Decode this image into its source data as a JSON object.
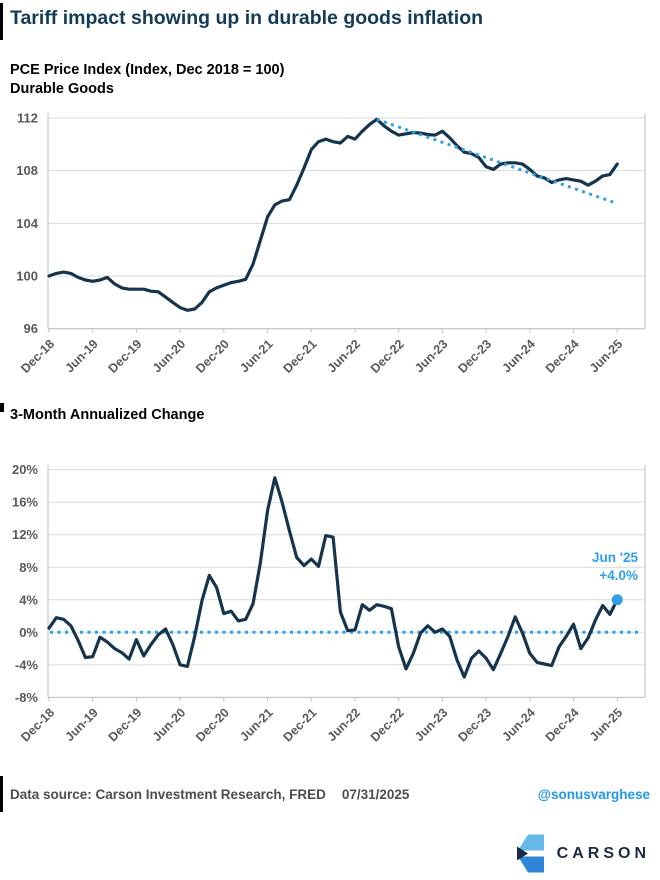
{
  "page": {
    "title": "Tariff impact showing up in durable goods inflation"
  },
  "footer": {
    "source": "Data source: Carson Investment Research, FRED",
    "date": "07/31/2025",
    "handle": "@sonusvarghese",
    "brand": "CARSON"
  },
  "colors": {
    "navy": "#15344E",
    "title_navy": "#143C57",
    "accent_blue": "#2E9FE8",
    "handle_blue": "#1E98E8",
    "grid": "#D9D9D9",
    "axis": "#BFBFBF",
    "axis_label_gray": "#595959",
    "footer_gray": "#4D4D4D",
    "logo_light_blue": "#66B8E8",
    "logo_mid_blue": "#2E86D8",
    "logo_navy": "#1B2B42"
  },
  "chart_data": [
    {
      "type": "line",
      "title": "PCE Price Index (Index, Dec 2018 = 100)",
      "subtitle": "Durable Goods",
      "x_start": "Dec-18",
      "x_end": "Jun-25",
      "frequency": "monthly",
      "grid": true,
      "x_tick_labels": [
        "Dec-18",
        "Jun-19",
        "Dec-19",
        "Jun-20",
        "Dec-20",
        "Jun-21",
        "Dec-21",
        "Jun-22",
        "Dec-22",
        "Jun-23",
        "Dec-23",
        "Jun-24",
        "Dec-24",
        "Jun-25"
      ],
      "y_tick_labels": [
        "96",
        "100",
        "104",
        "108",
        "112"
      ],
      "y_tick_values": [
        96,
        100,
        104,
        108,
        112
      ],
      "ylim": [
        96,
        112
      ],
      "series": [
        {
          "name": "PCE durable goods price index",
          "color_key": "navy",
          "values": [
            100.0,
            100.2,
            100.3,
            100.2,
            99.9,
            99.7,
            99.6,
            99.7,
            99.9,
            99.4,
            99.1,
            99.0,
            99.0,
            99.0,
            98.85,
            98.8,
            98.4,
            98.0,
            97.6,
            97.4,
            97.5,
            98.0,
            98.8,
            99.1,
            99.3,
            99.5,
            99.6,
            99.75,
            100.9,
            102.7,
            104.5,
            105.4,
            105.7,
            105.8,
            106.9,
            108.2,
            109.6,
            110.2,
            110.4,
            110.2,
            110.1,
            110.6,
            110.4,
            111.0,
            111.5,
            111.9,
            111.4,
            111.0,
            110.7,
            110.8,
            110.9,
            110.85,
            110.75,
            110.7,
            111.0,
            110.5,
            109.9,
            109.4,
            109.3,
            109.0,
            108.3,
            108.1,
            108.5,
            108.6,
            108.6,
            108.5,
            108.1,
            107.6,
            107.45,
            107.1,
            107.3,
            107.4,
            107.3,
            107.2,
            106.9,
            107.2,
            107.6,
            107.7,
            108.5
          ]
        }
      ],
      "trendline": {
        "name": "post-peak trend",
        "style": "dotted",
        "color_key": "accent_blue",
        "from": {
          "label": "Sep-22",
          "index": 45,
          "value": 111.9
        },
        "to": {
          "label": "Jun-25",
          "index": 78,
          "value": 105.5
        }
      }
    },
    {
      "type": "line",
      "title": "3-Month Annualized Change",
      "x_start": "Dec-18",
      "x_end": "Jun-25",
      "frequency": "monthly",
      "grid": true,
      "x_tick_labels": [
        "Dec-18",
        "Jun-19",
        "Dec-19",
        "Jun-20",
        "Dec-20",
        "Jun-21",
        "Dec-21",
        "Jun-22",
        "Dec-22",
        "Jun-23",
        "Dec-23",
        "Jun-24",
        "Dec-24",
        "Jun-25"
      ],
      "y_tick_labels": [
        "20%",
        "16%",
        "12%",
        "8%",
        "4%",
        "0%",
        "-4%",
        "-8%"
      ],
      "y_tick_values": [
        20,
        16,
        12,
        8,
        4,
        0,
        -4,
        -8
      ],
      "ylim": [
        -8,
        20
      ],
      "series": [
        {
          "name": "3-month annualized % change",
          "color_key": "navy",
          "values": [
            0.5,
            1.8,
            1.6,
            0.8,
            -1.0,
            -3.1,
            -3.0,
            -0.6,
            -1.2,
            -2.0,
            -2.5,
            -3.3,
            -0.9,
            -2.9,
            -1.5,
            -0.3,
            0.4,
            -1.5,
            -4.0,
            -4.2,
            -0.5,
            3.9,
            7.0,
            5.5,
            2.3,
            2.6,
            1.4,
            1.6,
            3.5,
            8.5,
            15.0,
            19.0,
            16.0,
            12.5,
            9.2,
            8.2,
            9.0,
            8.1,
            11.9,
            11.7,
            2.5,
            0.2,
            0.3,
            3.4,
            2.7,
            3.4,
            3.2,
            2.9,
            -1.8,
            -4.5,
            -2.6,
            -0.1,
            0.8,
            0.0,
            0.4,
            -0.5,
            -3.4,
            -5.5,
            -3.2,
            -2.3,
            -3.2,
            -4.6,
            -2.6,
            -0.5,
            1.9,
            -0.1,
            -2.6,
            -3.7,
            -3.9,
            -4.1,
            -1.8,
            -0.5,
            1.0,
            -2.0,
            -0.7,
            1.5,
            3.3,
            2.2,
            4.0
          ]
        }
      ],
      "zero_line": {
        "style": "dotted",
        "color_key": "accent_blue",
        "value": 0
      },
      "end_marker": {
        "index": 78,
        "value": 4.0,
        "color_key": "accent_blue"
      },
      "annotation": {
        "lines": [
          "Jun '25",
          "+4.0%"
        ],
        "color_key": "accent_blue"
      }
    }
  ]
}
